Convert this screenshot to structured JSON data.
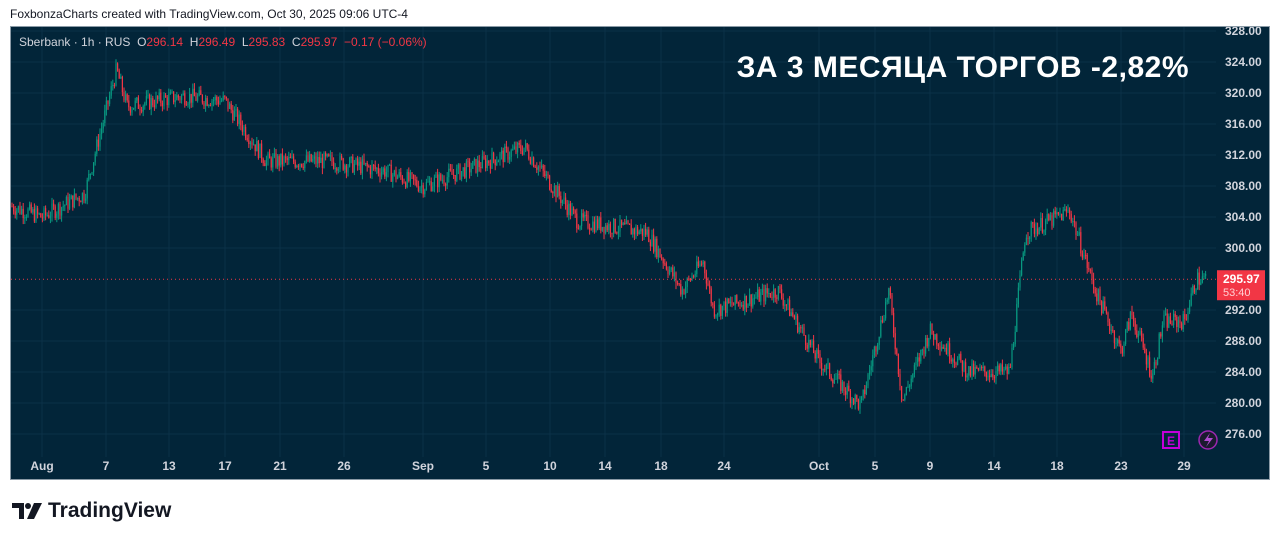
{
  "credit": "FoxbonzaCharts created with TradingView.com, Oct 30, 2025 09:06 UTC-4",
  "legend": {
    "symbol": "Sberbank · 1h · RUS",
    "o_label": "O",
    "o": "296.14",
    "h_label": "H",
    "h": "296.49",
    "l_label": "L",
    "l": "295.83",
    "c_label": "C",
    "c": "295.97",
    "change": "−0.17 (−0.06%)"
  },
  "headline": "ЗА 3 МЕСЯЦА ТОРГОВ -2,82%",
  "price_badge": {
    "price": "295.97",
    "countdown": "53:40"
  },
  "markers": {
    "earnings": "E",
    "dividend_icon": "lightning-icon"
  },
  "brand": "TradingView",
  "colors": {
    "background": "#022539",
    "up": "#089981",
    "down": "#f23645",
    "text": "#d1d4dc"
  },
  "chart_data": {
    "type": "candlestick",
    "title": "",
    "ylim": [
      274,
      330
    ],
    "y_ticks": [
      "328.00",
      "324.00",
      "320.00",
      "316.00",
      "312.00",
      "308.00",
      "304.00",
      "300.00",
      "292.00",
      "288.00",
      "284.00",
      "280.00",
      "276.00"
    ],
    "x_ticks": [
      "Aug",
      "7",
      "13",
      "17",
      "21",
      "26",
      "Sep",
      "5",
      "10",
      "14",
      "18",
      "24",
      "Oct",
      "5",
      "9",
      "14",
      "18",
      "23",
      "29"
    ],
    "last_price": 295.97,
    "price_path": [
      [
        "Jul 29",
        305.4
      ],
      [
        "Aug 1",
        304
      ],
      [
        "Aug 5",
        307
      ],
      [
        "Aug 8",
        323
      ],
      [
        "Aug 9",
        318.3
      ],
      [
        "Aug 14",
        319.6
      ],
      [
        "Aug 17",
        319
      ],
      [
        "Aug 20",
        311.2
      ],
      [
        "Aug 25",
        311.2
      ],
      [
        "Aug 29",
        310
      ],
      [
        "Sep 1",
        308
      ],
      [
        "Sep 8",
        313
      ],
      [
        "Sep 12",
        303.5
      ],
      [
        "Sep 17",
        302
      ],
      [
        "Sep 20",
        294.5
      ],
      [
        "Sep 22",
        298.3
      ],
      [
        "Sep 23",
        292
      ],
      [
        "Sep 28",
        294.5
      ],
      [
        "Oct 1",
        285.4
      ],
      [
        "Oct 4",
        279.6
      ],
      [
        "Oct 6",
        294.5
      ],
      [
        "Oct 7",
        280.3
      ],
      [
        "Oct 9",
        289.3
      ],
      [
        "Oct 12",
        284
      ],
      [
        "Oct 15",
        284
      ],
      [
        "Oct 16",
        302
      ],
      [
        "Oct 19",
        304.8
      ],
      [
        "Oct 21",
        294.5
      ],
      [
        "Oct 23",
        286.7
      ],
      [
        "Oct 24",
        291.5
      ],
      [
        "Oct 26",
        283.5
      ],
      [
        "Oct 27",
        290.5
      ],
      [
        "Oct 29",
        290.5
      ],
      [
        "Oct 30",
        295.97
      ]
    ]
  }
}
